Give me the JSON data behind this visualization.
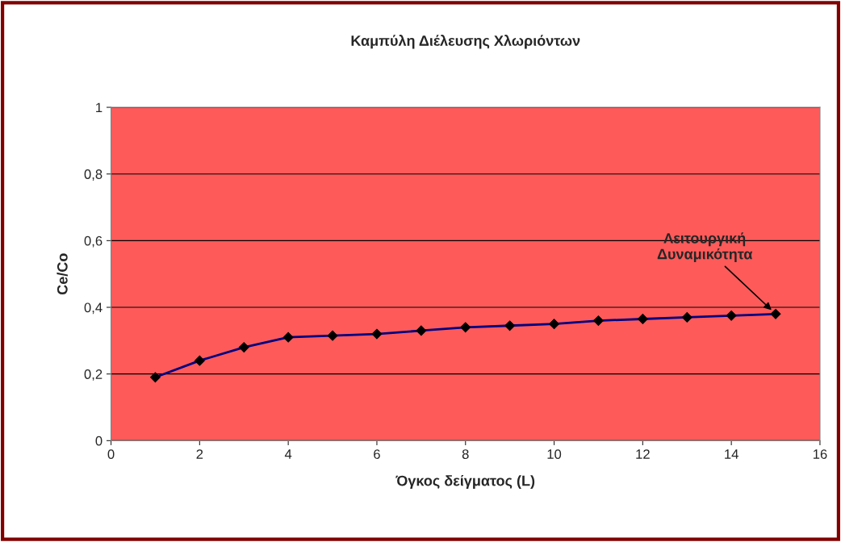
{
  "chart_data": {
    "type": "line",
    "title": "Καμπύλη Διέλευσης Χλωριόντων",
    "xlabel": "Όγκος δείγματος (L)",
    "ylabel": "Ce/Co",
    "x": [
      1,
      2,
      3,
      4,
      5,
      6,
      7,
      8,
      9,
      10,
      11,
      12,
      13,
      14,
      15
    ],
    "series": [
      {
        "color": "#000080",
        "values": [
          0.19,
          0.24,
          0.28,
          0.31,
          0.315,
          0.32,
          0.33,
          0.34,
          0.345,
          0.35,
          0.36,
          0.365,
          0.37,
          0.375,
          0.38
        ]
      }
    ],
    "xlim": [
      0,
      16
    ],
    "xticks": [
      0,
      2,
      4,
      6,
      8,
      10,
      12,
      14,
      16
    ],
    "ylim": [
      0,
      1
    ],
    "yticks": [
      0,
      {
        "value": 0.2,
        "label": "0,2"
      },
      {
        "value": 0.4,
        "label": "0,4"
      },
      {
        "value": 0.6,
        "label": "0,6"
      },
      {
        "value": 0.8,
        "label": "0,8"
      },
      1
    ],
    "grid": "y",
    "marker": "diamond",
    "line_style": "solid",
    "legend": false,
    "annotations": [
      {
        "text": "Λειτουργική\nΔυναμικότητα",
        "x": 15,
        "y": 0.38
      }
    ]
  }
}
